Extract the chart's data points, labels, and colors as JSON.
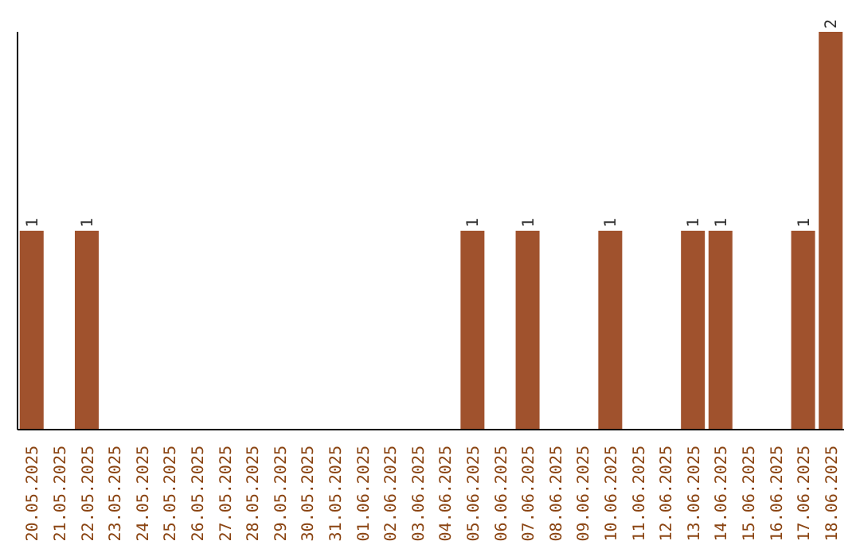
{
  "chart_data": {
    "type": "bar",
    "categories": [
      "20.05.2025",
      "21.05.2025",
      "22.05.2025",
      "23.05.2025",
      "24.05.2025",
      "25.05.2025",
      "26.05.2025",
      "27.05.2025",
      "28.05.2025",
      "29.05.2025",
      "30.05.2025",
      "31.05.2025",
      "01.06.2025",
      "02.06.2025",
      "03.06.2025",
      "04.06.2025",
      "05.06.2025",
      "06.06.2025",
      "07.06.2025",
      "08.06.2025",
      "09.06.2025",
      "10.06.2025",
      "11.06.2025",
      "12.06.2025",
      "13.06.2025",
      "14.06.2025",
      "15.06.2025",
      "16.06.2025",
      "17.06.2025",
      "18.06.2025"
    ],
    "values": [
      1,
      0,
      1,
      0,
      0,
      0,
      0,
      0,
      0,
      0,
      0,
      0,
      0,
      0,
      0,
      0,
      1,
      0,
      1,
      0,
      0,
      1,
      0,
      0,
      1,
      1,
      0,
      0,
      1,
      2
    ],
    "value_labels": [
      "1",
      null,
      "1",
      null,
      null,
      null,
      null,
      null,
      null,
      null,
      null,
      null,
      null,
      null,
      null,
      null,
      "1",
      null,
      "1",
      null,
      null,
      "1",
      null,
      null,
      "1",
      "1",
      null,
      null,
      "1",
      "2"
    ],
    "color": "#a0522d",
    "grid": false,
    "legend": false
  }
}
